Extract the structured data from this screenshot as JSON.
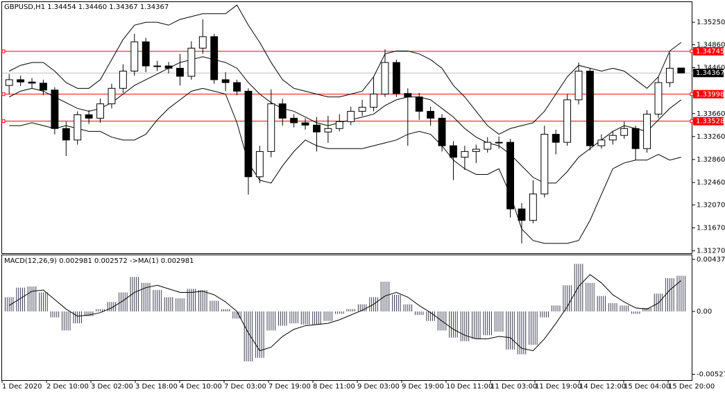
{
  "chart_data": [
    {
      "type": "candlestick",
      "title": "GBPUSD,H1  1.34454 1.34460 1.34367 1.34367",
      "ylim": [
        1.31229,
        1.35614
      ],
      "yticks": [
        {
          "value": 1.3525,
          "label": "1.35250"
        },
        {
          "value": 1.3486,
          "label": "1.34860"
        },
        {
          "value": 1.3446,
          "label": "1.34460"
        },
        {
          "value": 1.3366,
          "label": "1.33660"
        },
        {
          "value": 1.3326,
          "label": "1.33260"
        },
        {
          "value": 1.3286,
          "label": "1.32860"
        },
        {
          "value": 1.3246,
          "label": "1.32460"
        },
        {
          "value": 1.3207,
          "label": "1.32070"
        },
        {
          "value": 1.3167,
          "label": "1.31670"
        },
        {
          "value": 1.3127,
          "label": "1.31270"
        }
      ],
      "open": [
        1.3415,
        1.3425,
        1.3421,
        1.3419,
        1.3407,
        1.334,
        1.332,
        1.3364,
        1.3358,
        1.3383,
        1.341,
        1.344,
        1.3491,
        1.3449,
        1.3449,
        1.3445,
        1.3431,
        1.348,
        1.35,
        1.3425,
        1.342,
        1.3405,
        1.3256,
        1.33,
        1.3383,
        1.3358,
        1.335,
        1.3346,
        1.3334,
        1.334,
        1.3352,
        1.337,
        1.3377,
        1.34,
        1.3455,
        1.3401,
        1.3395,
        1.337,
        1.3358,
        1.331,
        1.329,
        1.33,
        1.3304,
        1.3316,
        1.3316,
        1.32,
        1.318,
        1.3226,
        1.333,
        1.3316,
        1.339,
        1.344,
        1.331,
        1.332,
        1.3328,
        1.334,
        1.3305,
        1.3365,
        1.342,
        1.34454
      ],
      "high": [
        1.3435,
        1.3432,
        1.3428,
        1.3425,
        1.3412,
        1.3352,
        1.337,
        1.3372,
        1.3392,
        1.3418,
        1.3452,
        1.3505,
        1.3498,
        1.3458,
        1.3456,
        1.347,
        1.3492,
        1.353,
        1.3505,
        1.3438,
        1.3425,
        1.341,
        1.331,
        1.3408,
        1.3392,
        1.3365,
        1.3358,
        1.336,
        1.3362,
        1.3365,
        1.3378,
        1.339,
        1.343,
        1.3478,
        1.346,
        1.341,
        1.3402,
        1.3378,
        1.3365,
        1.3318,
        1.331,
        1.3312,
        1.3325,
        1.3326,
        1.3322,
        1.321,
        1.325,
        1.3345,
        1.3338,
        1.34,
        1.3455,
        1.3445,
        1.333,
        1.3336,
        1.3352,
        1.3345,
        1.3372,
        1.343,
        1.3472,
        1.3446
      ],
      "low": [
        1.34,
        1.3414,
        1.341,
        1.3398,
        1.333,
        1.3292,
        1.3312,
        1.3348,
        1.335,
        1.3375,
        1.3402,
        1.3432,
        1.3438,
        1.344,
        1.3436,
        1.3415,
        1.3425,
        1.347,
        1.3418,
        1.3405,
        1.3398,
        1.3225,
        1.3245,
        1.329,
        1.3345,
        1.3342,
        1.3338,
        1.33,
        1.3315,
        1.3335,
        1.3346,
        1.3362,
        1.337,
        1.3395,
        1.3395,
        1.331,
        1.3355,
        1.3345,
        1.33,
        1.325,
        1.3268,
        1.328,
        1.3298,
        1.3305,
        1.3185,
        1.314,
        1.3175,
        1.322,
        1.3295,
        1.331,
        1.3382,
        1.3302,
        1.3305,
        1.3312,
        1.3322,
        1.3285,
        1.3298,
        1.3358,
        1.3412,
        1.34367
      ],
      "close": [
        1.3425,
        1.3421,
        1.3419,
        1.3407,
        1.334,
        1.332,
        1.3364,
        1.3358,
        1.3383,
        1.341,
        1.344,
        1.3491,
        1.3449,
        1.3449,
        1.3445,
        1.3431,
        1.348,
        1.35,
        1.3425,
        1.342,
        1.3405,
        1.3256,
        1.33,
        1.3383,
        1.3358,
        1.335,
        1.3346,
        1.3334,
        1.334,
        1.3352,
        1.337,
        1.3377,
        1.34,
        1.3455,
        1.3401,
        1.3395,
        1.337,
        1.3358,
        1.331,
        1.329,
        1.33,
        1.3304,
        1.3316,
        1.3316,
        1.32,
        1.318,
        1.3226,
        1.333,
        1.3316,
        1.339,
        1.344,
        1.331,
        1.332,
        1.3328,
        1.334,
        1.3305,
        1.3365,
        1.342,
        1.3445,
        1.34367
      ],
      "upper": [
        1.344,
        1.345,
        1.3455,
        1.3455,
        1.344,
        1.342,
        1.341,
        1.341,
        1.3425,
        1.346,
        1.3495,
        1.352,
        1.3525,
        1.3525,
        1.352,
        1.353,
        1.3535,
        1.354,
        1.354,
        1.354,
        1.3555,
        1.352,
        1.349,
        1.3455,
        1.3425,
        1.341,
        1.3405,
        1.34,
        1.3395,
        1.3395,
        1.34,
        1.3405,
        1.343,
        1.347,
        1.3475,
        1.3475,
        1.347,
        1.346,
        1.3445,
        1.3415,
        1.3395,
        1.337,
        1.3345,
        1.333,
        1.334,
        1.3345,
        1.335,
        1.337,
        1.34,
        1.343,
        1.345,
        1.3445,
        1.344,
        1.3445,
        1.344,
        1.3425,
        1.341,
        1.343,
        1.3475,
        1.349
      ],
      "middle": [
        1.3395,
        1.3405,
        1.341,
        1.3405,
        1.3395,
        1.3385,
        1.3375,
        1.337,
        1.3375,
        1.3385,
        1.34,
        1.3415,
        1.3425,
        1.3435,
        1.3445,
        1.3455,
        1.346,
        1.3465,
        1.346,
        1.3455,
        1.3445,
        1.342,
        1.34,
        1.3385,
        1.3375,
        1.337,
        1.336,
        1.335,
        1.3345,
        1.335,
        1.3355,
        1.336,
        1.3365,
        1.338,
        1.339,
        1.3395,
        1.3395,
        1.339,
        1.3375,
        1.336,
        1.334,
        1.3325,
        1.3315,
        1.331,
        1.3295,
        1.3275,
        1.3255,
        1.3245,
        1.3245,
        1.3265,
        1.329,
        1.3305,
        1.332,
        1.3335,
        1.3345,
        1.334,
        1.3335,
        1.3355,
        1.3375,
        1.339
      ],
      "lower": [
        1.3345,
        1.3345,
        1.335,
        1.3345,
        1.334,
        1.3345,
        1.334,
        1.3335,
        1.3335,
        1.3325,
        1.332,
        1.332,
        1.333,
        1.3355,
        1.3375,
        1.339,
        1.3405,
        1.341,
        1.3405,
        1.34,
        1.335,
        1.328,
        1.325,
        1.3245,
        1.3275,
        1.33,
        1.332,
        1.331,
        1.3305,
        1.3305,
        1.3305,
        1.3305,
        1.331,
        1.3315,
        1.332,
        1.333,
        1.3335,
        1.333,
        1.331,
        1.3285,
        1.327,
        1.326,
        1.326,
        1.327,
        1.3225,
        1.3165,
        1.3145,
        1.314,
        1.314,
        1.314,
        1.3145,
        1.318,
        1.3225,
        1.327,
        1.328,
        1.3285,
        1.3285,
        1.3295,
        1.3285,
        1.329
      ],
      "hlines": [
        {
          "value": 1.34745,
          "color": "#ff0000"
        },
        {
          "value": 1.33998,
          "color": "#ff0000"
        },
        {
          "value": 1.33528,
          "color": "#ff0000"
        }
      ],
      "price_line": 1.34367
    },
    {
      "type": "macd",
      "title": "MACD(12,26,9) 0.002981 0.002572  ->MA(1) 0.002981",
      "ylim": [
        -0.00577,
        0.00472
      ],
      "yticks": [
        0.004375,
        {
          "value": 0,
          "label": "0.00"
        },
        -0.005274
      ],
      "histogram": [
        0.0012,
        0.002,
        0.0021,
        0.0016,
        -0.0005,
        -0.0016,
        -0.001,
        -0.0004,
        0.0002,
        0.0008,
        0.0016,
        0.0029,
        0.0024,
        0.0018,
        0.0012,
        0.0011,
        0.0019,
        0.0018,
        0.0009,
        0.0002,
        -0.0006,
        -0.0042,
        -0.0039,
        -0.0016,
        -0.0012,
        -0.001,
        -0.0011,
        -0.0011,
        -0.0008,
        -0.0002,
        0.0002,
        0.0006,
        0.0012,
        0.0025,
        0.0014,
        0.0006,
        -0.0003,
        -0.0008,
        -0.0016,
        -0.0022,
        -0.0025,
        -0.0023,
        -0.002,
        -0.0017,
        -0.0032,
        -0.0036,
        -0.0028,
        -0.0005,
        0.0005,
        0.0022,
        0.004,
        0.0024,
        0.0013,
        0.0007,
        0.0005,
        -0.0002,
        0.0003,
        0.0015,
        0.0028,
        0.003
      ],
      "signal": [
        0.0005,
        0.0011,
        0.0017,
        0.0018,
        0.001,
        0.0002,
        -0.0004,
        -0.0003,
        -0.0001,
        0.0003,
        0.0009,
        0.0016,
        0.002,
        0.0022,
        0.0019,
        0.0016,
        0.0016,
        0.0017,
        0.0014,
        0.0008,
        0.0,
        -0.0018,
        -0.0033,
        -0.003,
        -0.0021,
        -0.0015,
        -0.0012,
        -0.0011,
        -0.001,
        -0.0007,
        -0.0003,
        0.0001,
        0.0006,
        0.0013,
        0.0016,
        0.0012,
        0.0005,
        -0.0001,
        -0.0008,
        -0.0015,
        -0.002,
        -0.0023,
        -0.0023,
        -0.0021,
        -0.0022,
        -0.0031,
        -0.0033,
        -0.0023,
        -0.001,
        0.0004,
        0.0021,
        0.0031,
        0.0024,
        0.0014,
        0.0008,
        0.0003,
        0.0002,
        0.0007,
        0.0018,
        0.0026
      ],
      "xtick_labels": [
        "1 Dec 2020",
        "2 Dec 10:00",
        "3 Dec 02:00",
        "3 Dec 18:00",
        "4 Dec 10:00",
        "7 Dec 03:00",
        "7 Dec 19:00",
        "8 Dec 11:00",
        "9 Dec 03:00",
        "9 Dec 19:00",
        "10 Dec 11:00",
        "11 Dec 03:00",
        "11 Dec 19:00",
        "14 Dec 12:00",
        "15 Dec 04:00",
        "15 Dec 20:00"
      ]
    }
  ]
}
